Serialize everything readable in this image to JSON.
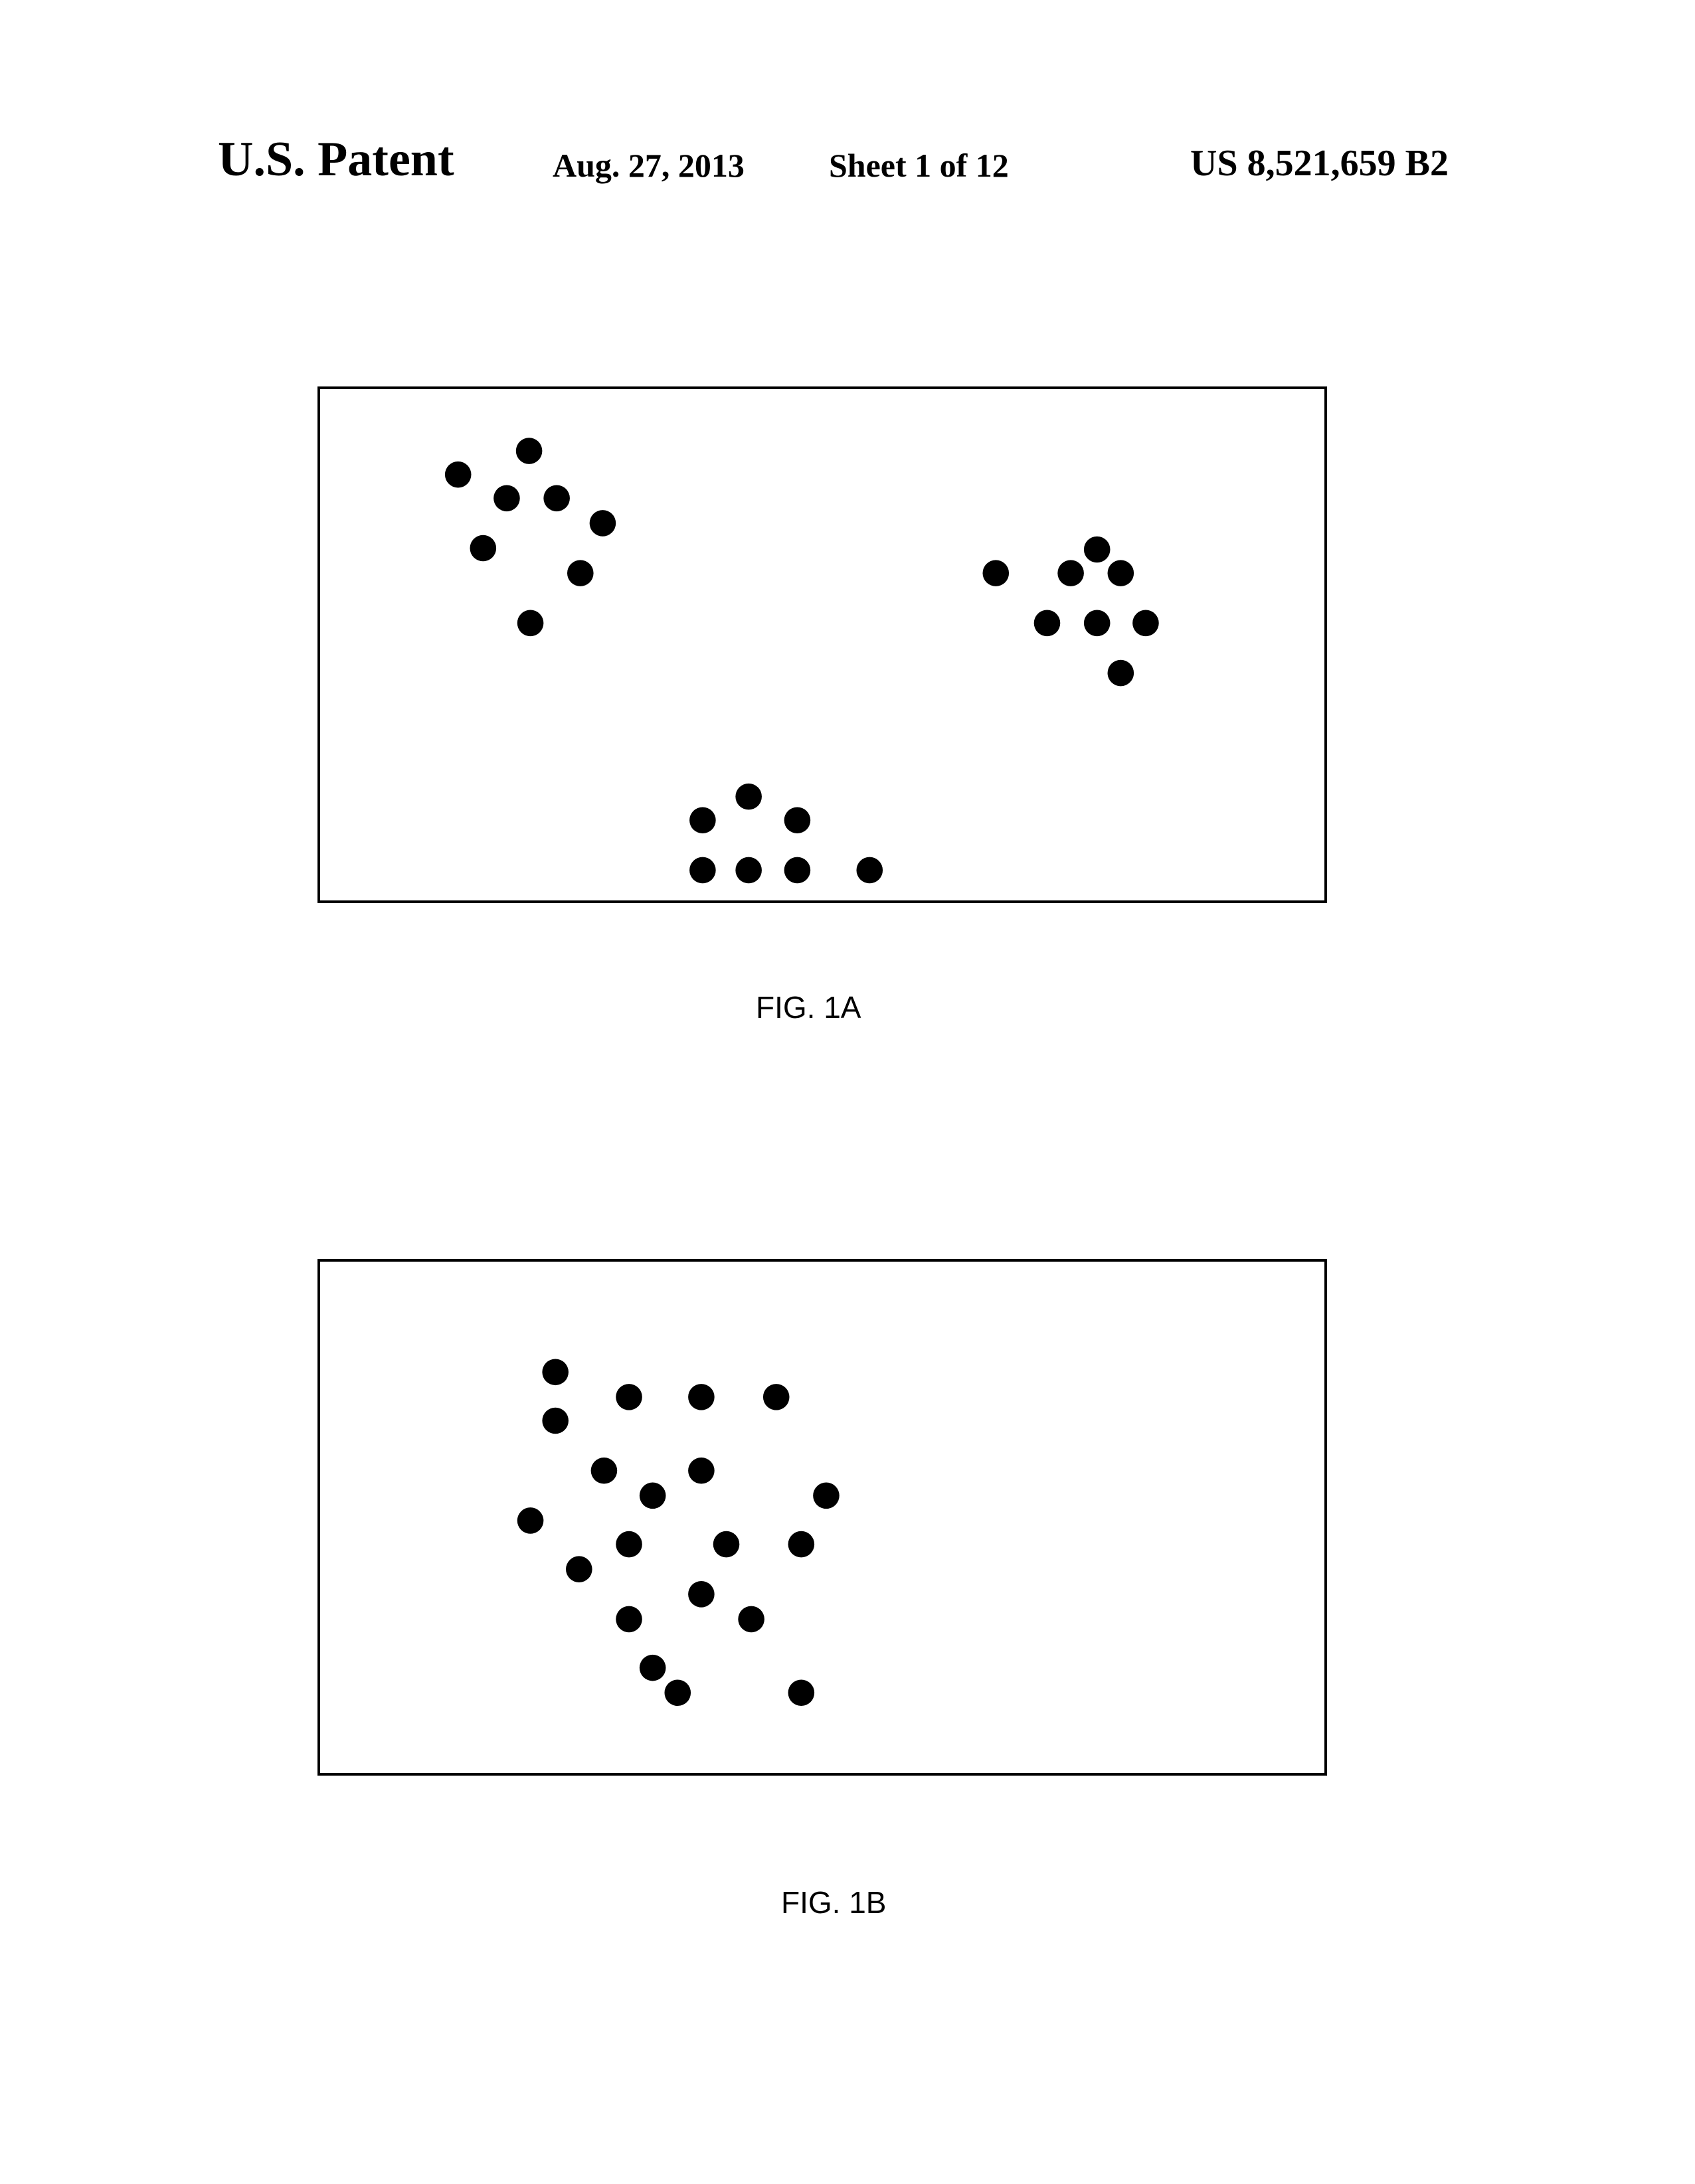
{
  "header": {
    "title": "U.S. Patent",
    "date": "Aug. 27, 2013",
    "sheet": "Sheet 1 of 12",
    "patent_number": "US 8,521,659 B2"
  },
  "figures": [
    {
      "caption": "FIG. 1A",
      "dot_color": "#000000"
    },
    {
      "caption": "FIG. 1B",
      "dot_color": "#000000"
    }
  ]
}
